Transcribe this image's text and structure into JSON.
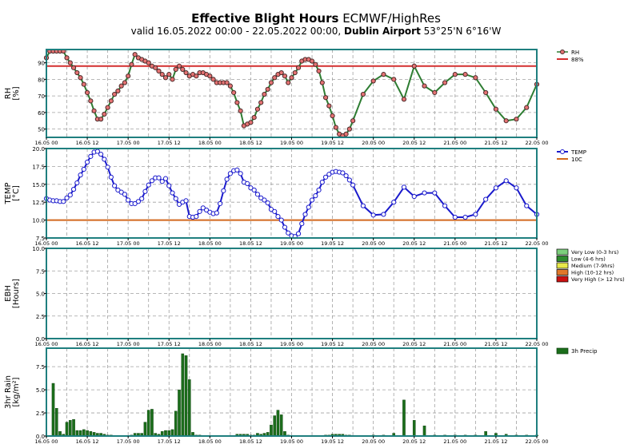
{
  "header": {
    "title_bold": "Effective Blight Hours",
    "title_rest": " ECMWF/HighRes",
    "valid_prefix": "valid 16.05.2022 00:00 - 22.05.2022 00:00, ",
    "location": "Dublin Airport",
    "coords": " 53°25'N 6°16'W"
  },
  "colors": {
    "frame": "#1f7f7f",
    "grid": "#a0a0a0",
    "rh_line": "#2e7d32",
    "rh_marker": "#e57373",
    "rh_threshold": "#d32f2f",
    "temp_line": "#1a1acc",
    "temp_threshold": "#d2691e",
    "rain_bar": "#1b6e1b",
    "ebh_very_low": "#7ccf7c",
    "ebh_low": "#2e8b2e",
    "ebh_medium": "#e8e84a",
    "ebh_high": "#e0782a",
    "ebh_very_high": "#cc1111"
  },
  "chart_data": [
    {
      "type": "line",
      "panel": "rh",
      "ylabel": "RH\n[%]",
      "ylim": [
        45,
        98
      ],
      "yticks": [
        "50",
        "60",
        "70",
        "80",
        "90"
      ],
      "xlim": [
        0,
        144
      ],
      "xticks": [
        "16.05 00",
        "16.05 12",
        "17.05 00",
        "17.05 12",
        "18.05 00",
        "18.05 12",
        "19.05 00",
        "19.05 12",
        "20.05 00",
        "20.05 12",
        "21.05 00",
        "21.05 12",
        "22.05 00"
      ],
      "grid": true,
      "legend_position": "right",
      "series": [
        {
          "name": "RH",
          "x": [
            0,
            1,
            2,
            3,
            4,
            5,
            6,
            7,
            8,
            9,
            10,
            11,
            12,
            13,
            14,
            15,
            16,
            17,
            18,
            19,
            20,
            21,
            22,
            23,
            24,
            25,
            26,
            27,
            28,
            29,
            30,
            31,
            32,
            33,
            34,
            35,
            36,
            37,
            38,
            39,
            40,
            41,
            42,
            43,
            44,
            45,
            46,
            47,
            48,
            49,
            50,
            51,
            52,
            53,
            54,
            55,
            56,
            57,
            58,
            59,
            60,
            61,
            62,
            63,
            64,
            65,
            66,
            67,
            68,
            69,
            70,
            71,
            72,
            73,
            74,
            75,
            76,
            77,
            78,
            79,
            80,
            81,
            82,
            83,
            84,
            85,
            86,
            87,
            88,
            89,
            90,
            93,
            96,
            99,
            102,
            105,
            108,
            111,
            114,
            117,
            120,
            123,
            126,
            129,
            132,
            135,
            138,
            141,
            144
          ],
          "values": [
            93,
            97,
            97,
            97,
            97,
            97,
            93,
            90,
            87,
            84,
            81,
            77,
            72,
            67,
            61,
            56,
            56,
            59,
            63,
            67,
            71,
            73,
            76,
            78,
            82,
            89,
            95,
            93,
            92,
            91,
            90,
            88,
            87,
            85,
            83,
            81,
            83,
            80,
            86,
            88,
            86,
            84,
            82,
            83,
            82,
            84,
            84,
            83,
            82,
            80,
            78,
            78,
            78,
            78,
            76,
            72,
            66,
            61,
            52,
            53,
            54,
            57,
            62,
            66,
            71,
            74,
            78,
            81,
            83,
            84,
            82,
            78,
            81,
            84,
            87,
            91,
            92,
            92,
            91,
            89,
            85,
            78,
            69,
            64,
            58,
            51,
            47,
            46,
            47,
            50,
            55,
            71,
            79,
            83,
            80,
            68,
            88,
            76,
            72,
            78,
            83,
            83,
            81,
            72,
            62,
            55,
            56,
            63,
            77
          ]
        },
        {
          "name": "88%",
          "x": [
            0,
            144
          ],
          "values": [
            88,
            88
          ]
        }
      ]
    },
    {
      "type": "line",
      "panel": "temp",
      "ylabel": "TEMP\n[°C]",
      "ylim": [
        7.5,
        20.0
      ],
      "yticks": [
        "7.5",
        "10.0",
        "12.5",
        "15.0",
        "17.5",
        "20.0"
      ],
      "xlim": [
        0,
        144
      ],
      "xticks": [
        "16.05 00",
        "16.05 12",
        "17.05 00",
        "17.05 12",
        "18.05 00",
        "18.05 12",
        "19.05 00",
        "19.05 12",
        "20.05 00",
        "20.05 12",
        "21.05 00",
        "21.05 12",
        "22.05 00"
      ],
      "grid": true,
      "legend_position": "right",
      "series": [
        {
          "name": "TEMP",
          "x": [
            0,
            1,
            2,
            3,
            4,
            5,
            6,
            7,
            8,
            9,
            10,
            11,
            12,
            13,
            14,
            15,
            16,
            17,
            18,
            19,
            20,
            21,
            22,
            23,
            24,
            25,
            26,
            27,
            28,
            29,
            30,
            31,
            32,
            33,
            34,
            35,
            36,
            37,
            38,
            39,
            40,
            41,
            42,
            43,
            44,
            45,
            46,
            47,
            48,
            49,
            50,
            51,
            52,
            53,
            54,
            55,
            56,
            57,
            58,
            59,
            60,
            61,
            62,
            63,
            64,
            65,
            66,
            67,
            68,
            69,
            70,
            71,
            72,
            73,
            74,
            75,
            76,
            77,
            78,
            79,
            80,
            81,
            82,
            83,
            84,
            85,
            86,
            87,
            88,
            89,
            90,
            93,
            96,
            99,
            102,
            105,
            108,
            111,
            114,
            117,
            120,
            123,
            126,
            129,
            132,
            135,
            138,
            141,
            144
          ],
          "values": [
            13.0,
            12.8,
            12.7,
            12.7,
            12.6,
            12.6,
            13.1,
            13.5,
            14.3,
            15.2,
            16.3,
            17.1,
            18.1,
            18.9,
            19.5,
            19.6,
            19.2,
            18.5,
            17.4,
            16.0,
            14.8,
            14.2,
            13.9,
            13.6,
            12.8,
            12.3,
            12.3,
            12.6,
            13.0,
            14.0,
            14.9,
            15.5,
            15.9,
            15.9,
            15.4,
            15.8,
            14.8,
            13.8,
            13.0,
            12.2,
            12.5,
            12.7,
            10.5,
            10.4,
            10.5,
            11.2,
            11.7,
            11.4,
            11.1,
            10.9,
            11.0,
            12.3,
            14.1,
            15.7,
            16.5,
            16.9,
            17.0,
            16.5,
            15.3,
            15.1,
            14.5,
            14.2,
            13.6,
            13.1,
            12.8,
            12.4,
            11.5,
            11.2,
            10.5,
            10.0,
            9.0,
            8.2,
            7.8,
            7.7,
            8.1,
            9.5,
            10.8,
            11.8,
            12.8,
            13.4,
            14.2,
            15.3,
            16.0,
            16.4,
            16.7,
            16.8,
            16.7,
            16.6,
            16.2,
            15.6,
            14.9,
            12.0,
            10.7,
            10.8,
            12.5,
            14.6,
            13.3,
            13.8,
            13.8,
            12.0,
            10.4,
            10.4,
            10.8,
            12.9,
            14.5,
            15.5,
            14.5,
            12.0,
            10.8
          ]
        },
        {
          "name": "10C",
          "x": [
            0,
            144
          ],
          "values": [
            10,
            10
          ]
        }
      ]
    },
    {
      "type": "bar",
      "panel": "ebh",
      "ylabel": "EBH\n[Hours]",
      "ylim": [
        0,
        10
      ],
      "yticks": [
        "0.0",
        "2.5",
        "5.0",
        "7.5",
        "10.0"
      ],
      "xlim": [
        0,
        144
      ],
      "xticks": [
        "16.05 00",
        "16.05 12",
        "17.05 00",
        "17.05 12",
        "18.05 00",
        "18.05 12",
        "19.05 00",
        "19.05 12",
        "20.05 00",
        "20.05 12",
        "21.05 00",
        "21.05 12",
        "22.05 00"
      ],
      "grid": true,
      "legend_position": "right",
      "legend": [
        "Very Low (0-3 hrs)",
        "Low (4-6 hrs)",
        "Medium (7-9hrs)",
        "High (10-12 hrs)",
        "Very High (> 12 hrs)"
      ],
      "values": []
    },
    {
      "type": "bar",
      "panel": "rain",
      "ylabel": "3hr Rain\n[kg/m²]",
      "ylim": [
        0,
        9.5
      ],
      "yticks": [
        "0.0",
        "2.5",
        "5.0",
        "7.5"
      ],
      "xlim": [
        0,
        144
      ],
      "xticks": [
        "16.05 00",
        "16.05 12",
        "17.05 00",
        "17.05 12",
        "18.05 00",
        "18.05 12",
        "19.05 00",
        "19.05 12",
        "20.05 00",
        "20.05 12",
        "21.05 00",
        "21.05 12",
        "22.05 00"
      ],
      "grid": true,
      "legend_position": "top-right",
      "series": [
        {
          "name": "3h Precip",
          "x": [
            2,
            3,
            4,
            5,
            6,
            7,
            8,
            9,
            10,
            11,
            12,
            13,
            14,
            15,
            16,
            17,
            18,
            19,
            20,
            21,
            22,
            23,
            24,
            25,
            26,
            27,
            28,
            29,
            30,
            31,
            32,
            33,
            34,
            35,
            36,
            37,
            38,
            39,
            40,
            41,
            42,
            43,
            44,
            45,
            46,
            47,
            48,
            49,
            50,
            51,
            52,
            53,
            54,
            55,
            56,
            57,
            58,
            59,
            60,
            61,
            62,
            63,
            64,
            65,
            66,
            67,
            68,
            69,
            70,
            71,
            72,
            73,
            74,
            75,
            76,
            77,
            78,
            79,
            80,
            81,
            82,
            83,
            84,
            85,
            86,
            87,
            88,
            89,
            90,
            93,
            96,
            99,
            102,
            105,
            108,
            111,
            114,
            117,
            120,
            123,
            126,
            129,
            132,
            135,
            138,
            141,
            144
          ],
          "values": [
            5.7,
            3.0,
            0.5,
            0.2,
            1.5,
            1.7,
            1.8,
            0.6,
            0.6,
            0.7,
            0.6,
            0.5,
            0.4,
            0.3,
            0.3,
            0.2,
            0.1,
            0.1,
            0.0,
            0.0,
            0.0,
            0.0,
            0.0,
            0.1,
            0.3,
            0.3,
            0.3,
            1.5,
            2.8,
            2.9,
            0.3,
            0.2,
            0.5,
            0.6,
            0.6,
            0.7,
            2.7,
            5.0,
            8.9,
            8.7,
            6.1,
            0.4,
            0.1,
            0.1,
            0.0,
            0.0,
            0.0,
            0.0,
            0.0,
            0.0,
            0.0,
            0.0,
            0.0,
            0.0,
            0.2,
            0.2,
            0.2,
            0.2,
            0.1,
            0.1,
            0.3,
            0.2,
            0.3,
            0.4,
            1.2,
            2.2,
            2.8,
            2.3,
            0.5,
            0.1,
            0.0,
            0.0,
            0.0,
            0.0,
            0.0,
            0.0,
            0.0,
            0.0,
            0.0,
            0.0,
            0.1,
            0.1,
            0.2,
            0.2,
            0.2,
            0.2,
            0.1,
            0.1,
            0.0,
            0.0,
            0.1,
            0.1,
            0.3,
            3.9,
            1.7,
            1.1,
            0.1,
            0.1,
            0.1,
            0.1,
            0.1,
            0.5,
            0.3,
            0.2,
            0.1,
            0.1,
            0.1
          ]
        }
      ]
    }
  ]
}
